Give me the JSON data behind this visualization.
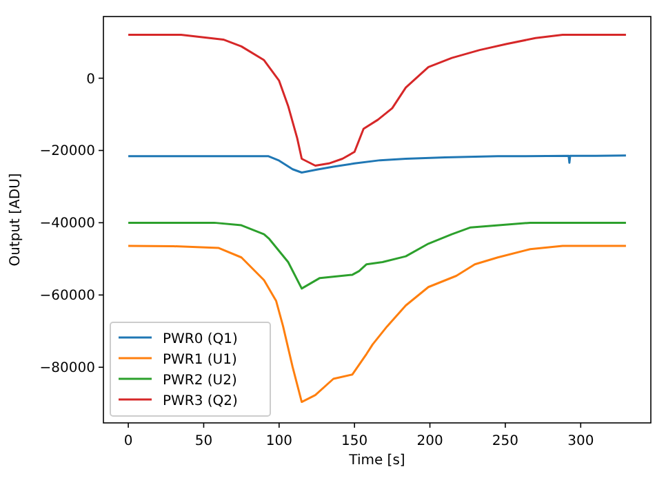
{
  "chart_data": {
    "type": "line",
    "xlabel": "Time [s]",
    "ylabel": "Output [ADU]",
    "xlim": [
      -16.5,
      346.5
    ],
    "ylim": [
      -95400,
      17070
    ],
    "xticks": [
      0,
      50,
      100,
      150,
      200,
      250,
      300
    ],
    "yticks": [
      {
        "value": -80000,
        "label": "−80000"
      },
      {
        "value": -60000,
        "label": "−60000"
      },
      {
        "value": -40000,
        "label": "−40000"
      },
      {
        "value": -20000,
        "label": "−20000"
      },
      0
    ],
    "grid": false,
    "legend": "bottom left",
    "marker": "none",
    "line_style": "solid",
    "series": [
      {
        "name": "PWR0 (Q1)",
        "color": "#1f77b4",
        "x": [
          0,
          50,
          93,
          100,
          109,
          115,
          125,
          136,
          150,
          167,
          184,
          210,
          245,
          292,
          292.5,
          293,
          310,
          330
        ],
        "values": [
          -21600,
          -21600,
          -21600,
          -22800,
          -25200,
          -26100,
          -25300,
          -24500,
          -23600,
          -22700,
          -22300,
          -21900,
          -21600,
          -21500,
          -23400,
          -21500,
          -21500,
          -21400
        ]
      },
      {
        "name": "PWR1 (U1)",
        "color": "#ff7f0e",
        "x": [
          0,
          30,
          60,
          75,
          90,
          98,
          102.6,
          109,
          115,
          124,
          136,
          148.6,
          158,
          162,
          171.6,
          184,
          199,
          217.5,
          229.8,
          245,
          266.5,
          288,
          310,
          330
        ],
        "values": [
          -46400,
          -46500,
          -47000,
          -49600,
          -55900,
          -61600,
          -68600,
          -80000,
          -89600,
          -87700,
          -83200,
          -82000,
          -76300,
          -73700,
          -68700,
          -62900,
          -57800,
          -54700,
          -51500,
          -49600,
          -47300,
          -46400,
          -46400,
          -46400
        ]
      },
      {
        "name": "PWR2 (U2)",
        "color": "#2ca02c",
        "x": [
          0,
          30,
          57,
          75,
          90,
          93.5,
          106,
          115,
          127,
          148.6,
          153,
          158,
          168.6,
          184,
          199,
          214.5,
          227,
          266.5,
          300,
          330
        ],
        "values": [
          -40000,
          -40000,
          -40000,
          -40700,
          -43200,
          -44500,
          -50900,
          -58200,
          -55300,
          -54400,
          -53400,
          -51500,
          -50900,
          -49300,
          -45800,
          -43200,
          -41300,
          -40000,
          -40000,
          -40000
        ]
      },
      {
        "name": "PWR3 (Q2)",
        "color": "#d62728",
        "x": [
          0,
          35,
          63,
          75,
          90,
          100,
          106,
          112,
          115,
          124,
          133,
          142,
          150,
          156,
          165.5,
          175,
          184,
          199,
          214.5,
          233,
          251,
          270,
          288,
          310,
          330
        ],
        "values": [
          12000,
          12000,
          10700,
          8800,
          5000,
          -700,
          -7700,
          -16600,
          -22300,
          -24200,
          -23600,
          -22300,
          -20400,
          -14000,
          -11500,
          -8300,
          -2600,
          3100,
          5600,
          7800,
          9500,
          11100,
          12000,
          12000,
          12000
        ]
      }
    ]
  }
}
